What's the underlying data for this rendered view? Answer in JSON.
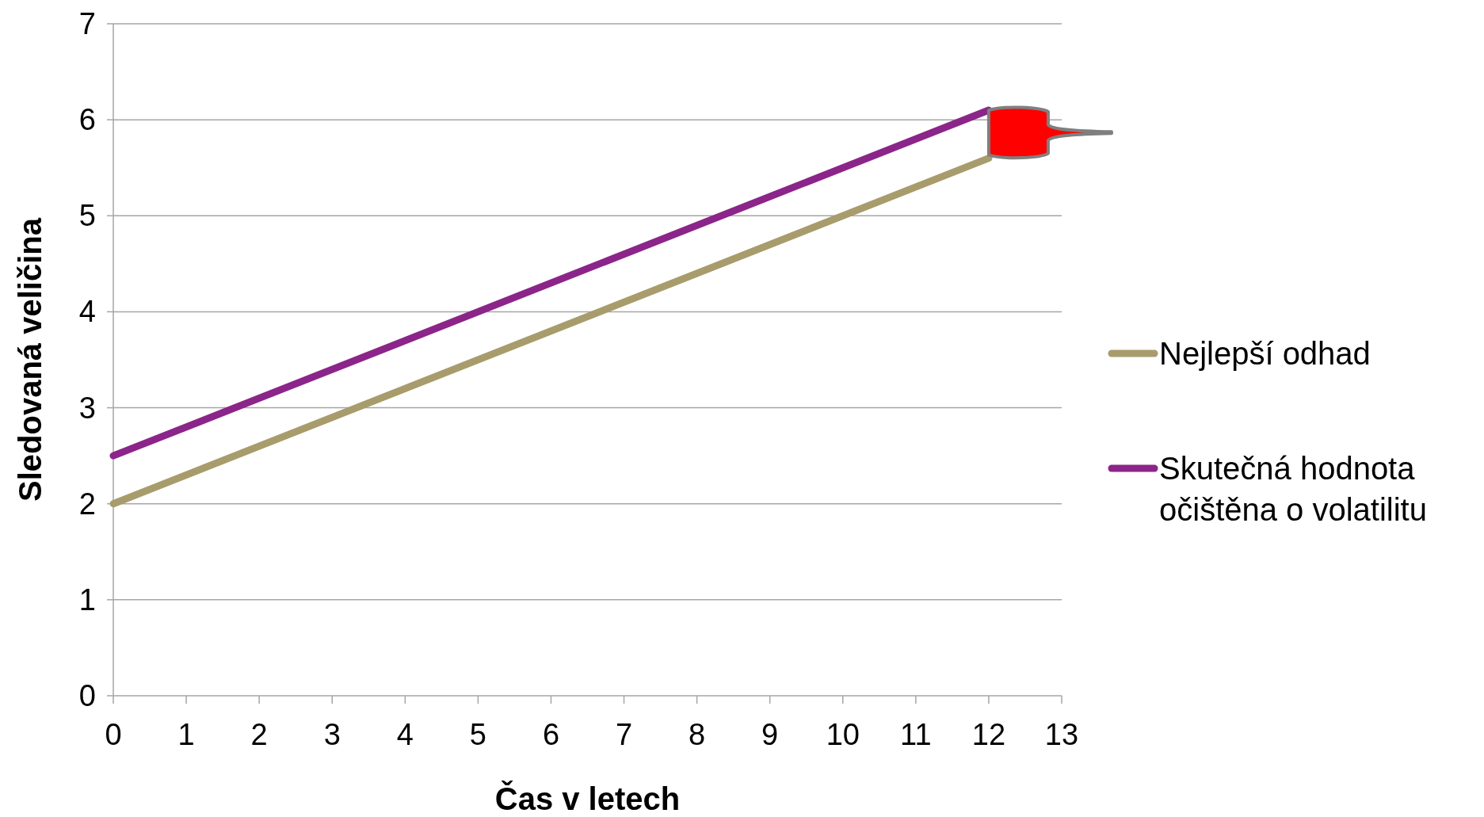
{
  "chart_data": {
    "type": "line",
    "xlabel": "Čas v letech",
    "ylabel": "Sledovaná veličina",
    "x": [
      0,
      12
    ],
    "series": [
      {
        "name": "Nejlepší odhad",
        "color": "#a89c6c",
        "values": [
          2,
          5.6
        ]
      },
      {
        "name": "Skutečná hodnota očištěna o volatilitu",
        "color": "#8b2589",
        "values": [
          2.5,
          6.1
        ]
      }
    ],
    "xlim": [
      0,
      13
    ],
    "xticks": [
      0,
      1,
      2,
      3,
      4,
      5,
      6,
      7,
      8,
      9,
      10,
      11,
      12,
      13
    ],
    "ylim": [
      0,
      7
    ],
    "yticks": [
      0,
      1,
      2,
      3,
      4,
      5,
      6,
      7
    ],
    "grid": "y",
    "legend": "right",
    "marker": "none",
    "line_style": "solid"
  }
}
